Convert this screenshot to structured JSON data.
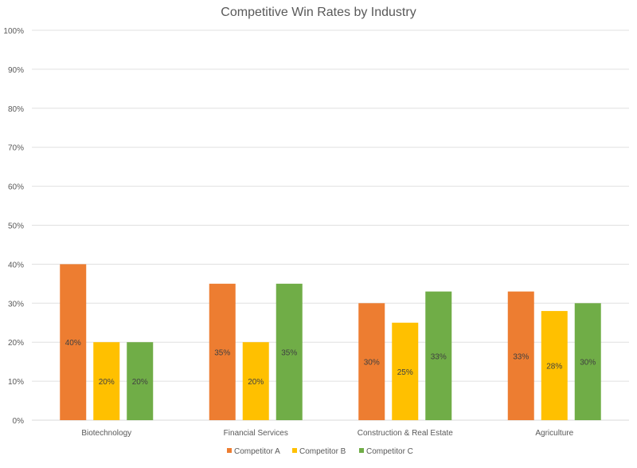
{
  "chart_data": {
    "type": "bar",
    "title": "Competitive Win Rates by Industry",
    "xlabel": "",
    "ylabel": "",
    "ylim": [
      0,
      100
    ],
    "yticks": [
      "0%",
      "10%",
      "20%",
      "30%",
      "40%",
      "50%",
      "60%",
      "70%",
      "80%",
      "90%",
      "100%"
    ],
    "grid": true,
    "legend_position": "bottom",
    "categories": [
      "Biotechnology",
      "Financial Services",
      "Construction & Real Estate",
      "Agriculture"
    ],
    "series": [
      {
        "name": "Competitor A",
        "color": "#ED7D31",
        "values": [
          40,
          35,
          30,
          33
        ],
        "labels": [
          "40%",
          "35%",
          "30%",
          "33%"
        ]
      },
      {
        "name": "Competitor B",
        "color": "#FFC000",
        "values": [
          20,
          20,
          25,
          28
        ],
        "labels": [
          "20%",
          "20%",
          "25%",
          "28%"
        ]
      },
      {
        "name": "Competitor C",
        "color": "#70AD47",
        "values": [
          20,
          35,
          33,
          30
        ],
        "labels": [
          "20%",
          "35%",
          "33%",
          "30%"
        ]
      }
    ]
  }
}
